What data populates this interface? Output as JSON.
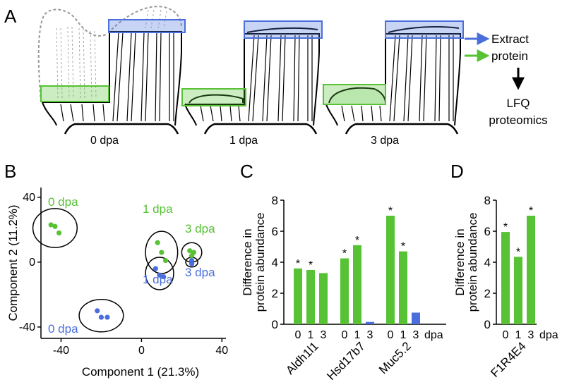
{
  "panels": {
    "a": "A",
    "b": "B",
    "c": "C",
    "d": "D"
  },
  "panel_a": {
    "stages": [
      "0 dpa",
      "1 dpa",
      "3 dpa"
    ],
    "legend": {
      "extract": "Extract",
      "protein": "protein",
      "lfq": "LFQ",
      "proteomics": "proteomics"
    },
    "colors": {
      "blue": "#4a6fdc",
      "green": "#56c234"
    }
  },
  "chart_data": [
    {
      "type": "scatter",
      "xlabel": "Component 1 (21.3%)",
      "ylabel": "Component 2 (11.2%)",
      "xlim": [
        -50,
        42
      ],
      "ylim": [
        -47,
        46
      ],
      "xticks": [
        "-40",
        "0",
        "40"
      ],
      "yticks": [
        "40",
        "0",
        "-40"
      ],
      "series": [
        {
          "color": "#56c234",
          "points": [
            [
              -45,
              23
            ],
            [
              -43,
              22
            ],
            [
              -41,
              18
            ],
            [
              8,
              12
            ],
            [
              10,
              6
            ],
            [
              12,
              1
            ],
            [
              24,
              7
            ],
            [
              26,
              6
            ],
            [
              25,
              4
            ]
          ]
        },
        {
          "color": "#4a6fdc",
          "points": [
            [
              -22,
              -30
            ],
            [
              -20,
              -34
            ],
            [
              -17,
              -34
            ],
            [
              7,
              -4
            ],
            [
              9,
              -8
            ],
            [
              11,
              -9
            ],
            [
              25,
              1
            ],
            [
              25,
              -1
            ]
          ]
        }
      ],
      "annotations": [
        {
          "text": "0 dpa",
          "color": "#56c234"
        },
        {
          "text": "1 dpa",
          "color": "#56c234"
        },
        {
          "text": "3 dpa",
          "color": "#56c234"
        },
        {
          "text": "1 dpa",
          "color": "#4a6fdc"
        },
        {
          "text": "3 dpa",
          "color": "#4a6fdc"
        },
        {
          "text": "0 dpa",
          "color": "#4a6fdc"
        }
      ]
    },
    {
      "type": "bar",
      "ylabel": [
        "Difference in",
        "protein abundance"
      ],
      "ylim": [
        0,
        8
      ],
      "yticks": [
        "0",
        "2",
        "4",
        "6",
        "8"
      ],
      "xunit": "dpa",
      "groups": [
        {
          "name": "Aldh1l1",
          "categories": [
            "0",
            "1",
            "3"
          ],
          "values": [
            3.6,
            3.5,
            3.3
          ],
          "colors": [
            "#56c234",
            "#56c234",
            "#56c234"
          ],
          "marks": [
            "*",
            "*",
            ""
          ]
        },
        {
          "name": "Hsd17b7",
          "categories": [
            "0",
            "1",
            "3"
          ],
          "values": [
            4.25,
            5.1,
            0.15
          ],
          "colors": [
            "#56c234",
            "#56c234",
            "#4a6fdc"
          ],
          "marks": [
            "*",
            "*",
            ""
          ]
        },
        {
          "name": "Muc5.2",
          "categories": [
            "0",
            "1",
            "3"
          ],
          "values": [
            7.0,
            4.7,
            0.75
          ],
          "colors": [
            "#56c234",
            "#56c234",
            "#4a6fdc"
          ],
          "marks": [
            "*",
            "*",
            ""
          ]
        }
      ]
    },
    {
      "type": "bar",
      "ylabel": [
        "Difference in",
        "protein abundance"
      ],
      "ylim": [
        0,
        8
      ],
      "yticks": [
        "0",
        "2",
        "4",
        "6",
        "8"
      ],
      "xunit": "dpa",
      "groups": [
        {
          "name": "F1R4E4",
          "categories": [
            "0",
            "1",
            "3"
          ],
          "values": [
            5.95,
            4.35,
            7.0
          ],
          "colors": [
            "#56c234",
            "#56c234",
            "#56c234"
          ],
          "marks": [
            "*",
            "*",
            "*"
          ]
        }
      ]
    }
  ]
}
